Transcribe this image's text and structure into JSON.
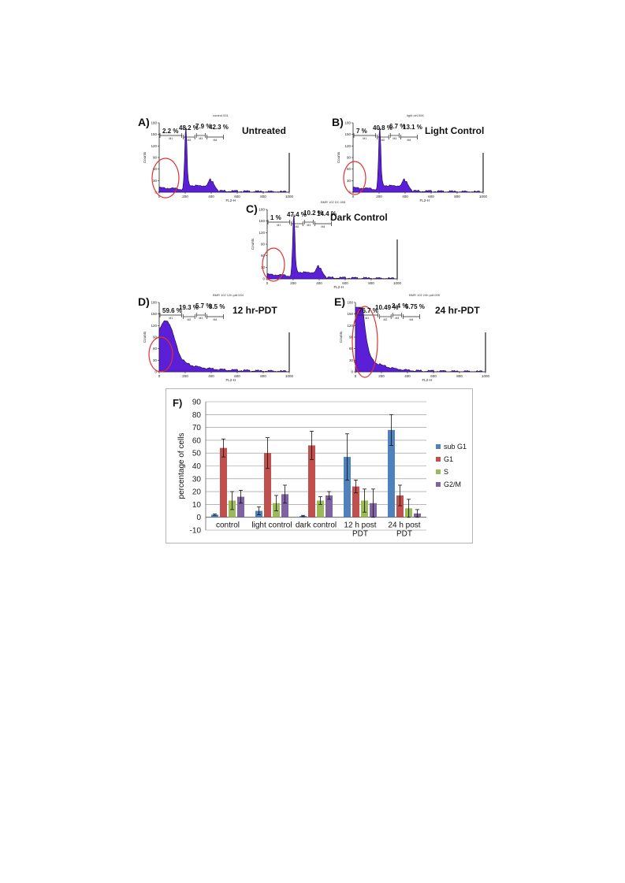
{
  "flow_panels": [
    {
      "letter": "A)",
      "condition": "Untreated",
      "file": "control.001",
      "percents": [
        "2.2 %",
        "48.2 %",
        "7.9 %",
        "42.3 %"
      ],
      "gates": [
        "M1",
        "M2",
        "M3",
        "M4"
      ],
      "xticks": [
        "0",
        "200",
        "400",
        "600",
        "800",
        "1000"
      ],
      "yticks": [
        "0",
        "30",
        "60",
        "90",
        "120",
        "150",
        "180"
      ],
      "xlabel": "FL2-H",
      "ylabel": "Counts"
    },
    {
      "letter": "B)",
      "condition": "Light Control",
      "file": "light ctrl.006",
      "percents": [
        "7 %",
        "40.8 %",
        "6.7 %",
        "13.1 %"
      ],
      "gates": [
        "M1",
        "M2",
        "M3",
        "M4"
      ],
      "xticks": [
        "0",
        "200",
        "400",
        "600",
        "800",
        "1000"
      ],
      "yticks": [
        "0",
        "30",
        "60",
        "90",
        "120",
        "150",
        "180"
      ],
      "xlabel": "FL2-H",
      "ylabel": "Counts"
    },
    {
      "letter": "C)",
      "condition": "Dark Control",
      "file": "BMR 102 DC.008",
      "percents": [
        "1 %",
        "47.4 %",
        "10.2 %",
        "14.4 %"
      ],
      "gates": [
        "M1",
        "M2",
        "M3",
        "M4"
      ],
      "xticks": [
        "0",
        "200",
        "400",
        "600",
        "800",
        "1000"
      ],
      "yticks": [
        "0",
        "30",
        "60",
        "90",
        "120",
        "150",
        "180"
      ],
      "xlabel": "FL2-H",
      "ylabel": "Counts"
    },
    {
      "letter": "D)",
      "condition": "12 hr-PDT",
      "file": "BMR 102 12h pdt.004",
      "percents": [
        "59.6 %",
        "19.3 %",
        "5.7 %",
        "8.5 %"
      ],
      "gates": [
        "M1",
        "M2",
        "M3",
        "M4"
      ],
      "xticks": [
        "0",
        "200",
        "400",
        "600",
        "800",
        "1000"
      ],
      "yticks": [
        "0",
        "30",
        "60",
        "90",
        "120",
        "150",
        "180"
      ],
      "xlabel": "FL2-H",
      "ylabel": "Counts"
    },
    {
      "letter": "E)",
      "condition": "24 hr-PDT",
      "file": "BMR 102 24h pdt.005",
      "percents": [
        "76.7 %",
        "10.49 %",
        "2.4 %",
        "6.75 %"
      ],
      "gates": [
        "M1",
        "M2",
        "M3",
        "M4"
      ],
      "xticks": [
        "0",
        "200",
        "400",
        "600",
        "800",
        "1000"
      ],
      "yticks": [
        "0",
        "30",
        "60",
        "90",
        "120",
        "150",
        "180"
      ],
      "xlabel": "FL2-H",
      "ylabel": "Counts"
    }
  ],
  "colors": {
    "histogram": "#5a1fd6",
    "histogram_edge": "#1a0a3a",
    "gate_circle": "#e23030",
    "sub_g1": "#4f81bd",
    "g1": "#c0504d",
    "s": "#9bbb59",
    "g2m": "#8064a2"
  },
  "chart_data": {
    "type": "bar",
    "panel_label": "F)",
    "categories": [
      "control",
      "light control",
      "dark control",
      "12 h post PDT",
      "24 h post PDT"
    ],
    "series": [
      {
        "name": "sub G1",
        "color": "#4f81bd",
        "values": [
          2,
          5,
          1,
          47,
          68
        ],
        "errors": [
          0.5,
          3,
          0.5,
          18,
          12
        ]
      },
      {
        "name": "G1",
        "color": "#c0504d",
        "values": [
          54,
          50,
          56,
          24,
          17
        ],
        "errors": [
          7,
          12,
          11,
          5,
          8
        ]
      },
      {
        "name": "S",
        "color": "#9bbb59",
        "values": [
          13,
          11,
          13,
          13,
          7
        ],
        "errors": [
          7,
          6,
          3,
          9,
          7
        ]
      },
      {
        "name": "G2/M",
        "color": "#8064a2",
        "values": [
          16,
          18,
          17,
          11,
          3
        ],
        "errors": [
          5,
          7,
          3,
          11,
          3
        ]
      }
    ],
    "ylabel": "percentage of cells",
    "ylim": [
      -10,
      90
    ],
    "yticks": [
      90,
      80,
      70,
      60,
      50,
      40,
      30,
      20,
      10,
      0,
      -10
    ],
    "grid": true,
    "legend_position": "right"
  }
}
